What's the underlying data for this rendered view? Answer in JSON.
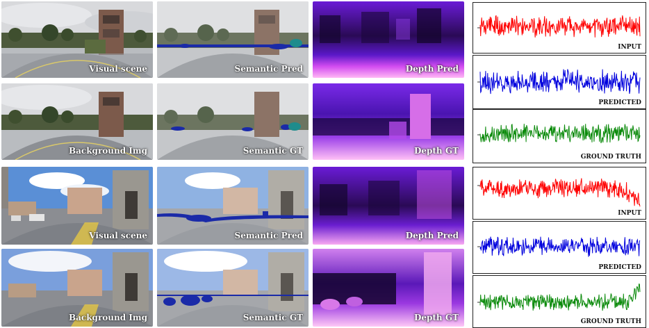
{
  "captions": {
    "visual_scene_1": "Visual scene",
    "semantic_pred_1": "Semantic Pred",
    "depth_pred_1": "Depth Pred",
    "background_img_1": "Background Img",
    "semantic_gt_1": "Semantic GT",
    "depth_gt_1": "Depth GT",
    "visual_scene_2": "Visual scene",
    "semantic_pred_2": "Semantic Pred",
    "depth_pred_2": "Depth Pred",
    "background_img_2": "Background Img",
    "semantic_gt_2": "Semantic GT",
    "depth_gt_2": "Depth GT"
  },
  "signal_labels": {
    "input_1": "INPUT",
    "predicted_1": "PREDICTED",
    "ground_truth_1": "GROUND TRUTH",
    "input_2": "INPUT",
    "predicted_2": "PREDICTED",
    "ground_truth_2": "GROUND TRUTH"
  },
  "colors": {
    "input": "#ff0000",
    "predicted": "#0000dd",
    "ground_truth": "#0a8a0a",
    "semantic_blue": "#1a2aa8",
    "semantic_teal": "#1e8c8c"
  }
}
